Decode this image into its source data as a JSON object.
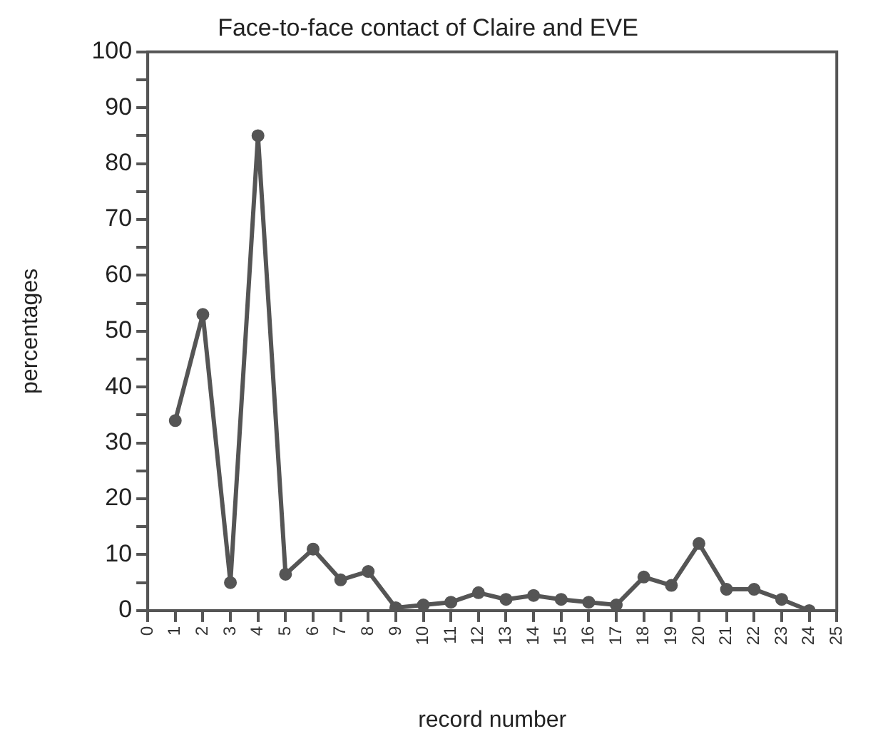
{
  "chart_data": {
    "type": "line",
    "title": "Face-to-face contact of Claire and EVE",
    "xlabel": "record number",
    "ylabel": "percentages",
    "x": [
      1,
      2,
      3,
      4,
      5,
      6,
      7,
      8,
      9,
      10,
      11,
      12,
      13,
      14,
      15,
      16,
      17,
      18,
      19,
      20,
      21,
      22,
      23,
      24
    ],
    "series": [
      {
        "color": "#555555",
        "values": [
          34,
          53,
          5,
          85,
          6.5,
          11,
          5.5,
          7,
          0.5,
          1,
          1.5,
          3.2,
          2,
          2.7,
          2,
          1.5,
          1,
          6,
          4.5,
          12,
          3.8,
          3.8,
          2,
          0
        ]
      }
    ],
    "xlim": [
      0,
      25
    ],
    "xticks": [
      0,
      1,
      2,
      3,
      4,
      5,
      6,
      7,
      8,
      9,
      10,
      11,
      12,
      13,
      14,
      15,
      16,
      17,
      18,
      19,
      20,
      21,
      22,
      23,
      24,
      25
    ],
    "ylim": [
      0,
      100
    ],
    "yticks": [
      0,
      {
        "value": 5,
        "label": null
      },
      10,
      {
        "value": 15,
        "label": null
      },
      20,
      {
        "value": 25,
        "label": null
      },
      30,
      {
        "value": 35,
        "label": null
      },
      40,
      {
        "value": 45,
        "label": null
      },
      50,
      {
        "value": 55,
        "label": null
      },
      60,
      {
        "value": 65,
        "label": null
      },
      70,
      {
        "value": 75,
        "label": null
      },
      80,
      {
        "value": 85,
        "label": null
      },
      90,
      {
        "value": 95,
        "label": null
      },
      100
    ],
    "marker": "circle",
    "line_style": "solid",
    "grid": false,
    "legend": false
  }
}
